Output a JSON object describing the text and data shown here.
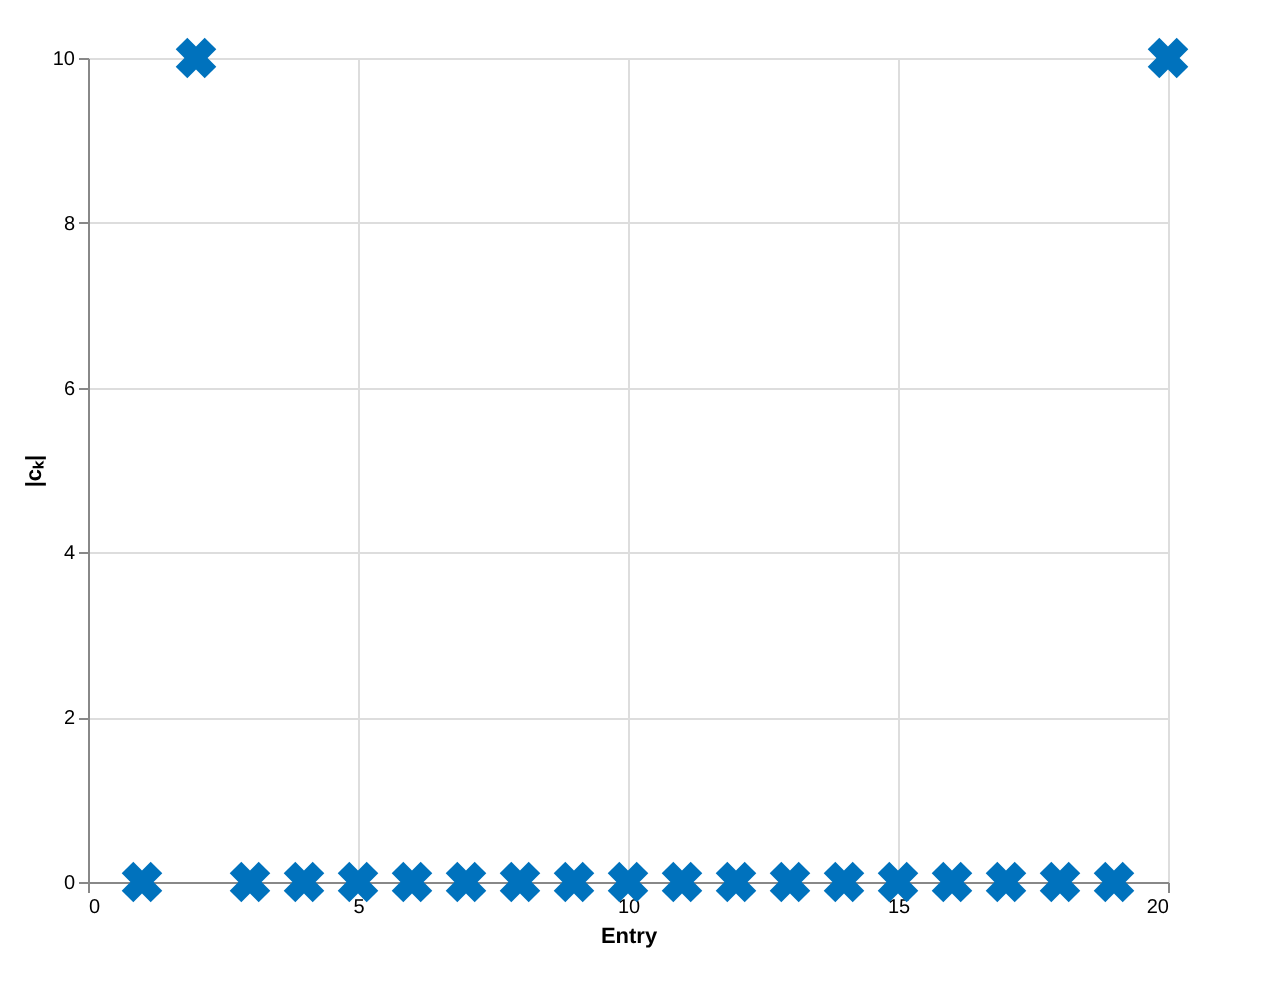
{
  "chart_data": {
    "type": "scatter",
    "xlabel": "Entry",
    "ylabel": "|cₖ|",
    "x": [
      1,
      2,
      3,
      4,
      5,
      6,
      7,
      8,
      9,
      10,
      11,
      12,
      13,
      14,
      15,
      16,
      17,
      18,
      19,
      20
    ],
    "series": [
      {
        "color": "#0072bd",
        "values": [
          0,
          10,
          0,
          0,
          0,
          0,
          0,
          0,
          0,
          0,
          0,
          0,
          0,
          0,
          0,
          0,
          0,
          0,
          0,
          10
        ]
      }
    ],
    "xlim": [
      0,
      20
    ],
    "ylim": [
      0,
      10
    ],
    "xticks": [
      0,
      5,
      10,
      15,
      20
    ],
    "yticks": [
      0,
      2,
      4,
      6,
      8,
      10
    ],
    "grid": true,
    "marker": "cross"
  }
}
